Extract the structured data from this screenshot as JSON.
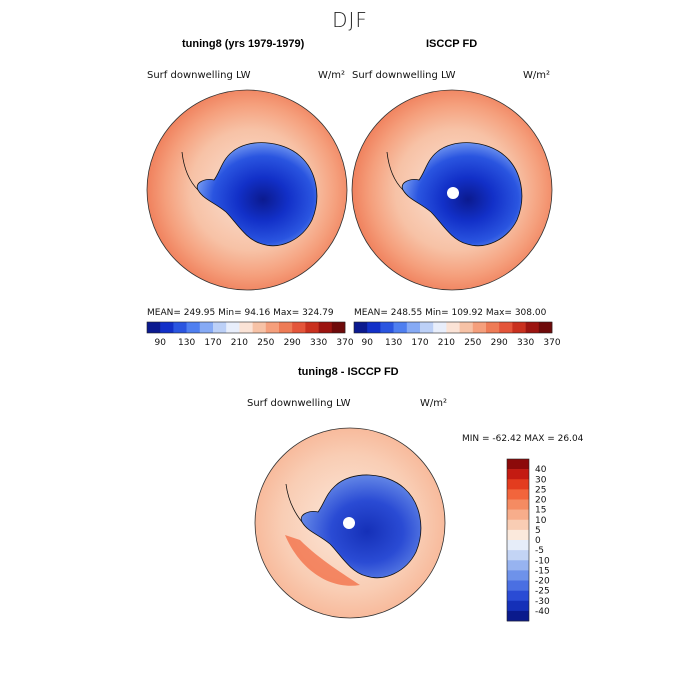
{
  "figure": {
    "season": "DJF"
  },
  "panels": [
    {
      "title": "tuning8 (yrs 1979-1979)",
      "variable": "Surf downwelling LW",
      "units": "W/m²",
      "stats": "MEAN= 249.95   Min=  94.16   Max= 324.79"
    },
    {
      "title": "ISCCP FD",
      "variable": "Surf downwelling LW",
      "units": "W/m²",
      "stats": "MEAN= 248.55   Min= 109.92   Max= 308.00"
    },
    {
      "title": "tuning8 - ISCCP FD",
      "variable": "Surf downwelling LW",
      "units": "W/m²",
      "stats": "MIN = -62.42  MAX =  26.04"
    }
  ],
  "colorbar_fields": {
    "labels": [
      "90",
      "130",
      "170",
      "210",
      "250",
      "290",
      "330",
      "370"
    ],
    "colors": [
      "#0b1a8f",
      "#1230c8",
      "#2a55e0",
      "#4f7ff0",
      "#86aaf5",
      "#bcd0f7",
      "#e8eefb",
      "#fbe3d6",
      "#f7c2a6",
      "#f59f7c",
      "#ee7b56",
      "#e4553a",
      "#c9301e",
      "#9c1410",
      "#6e0a0a"
    ]
  },
  "colorbar_diff": {
    "labels": [
      "40",
      "30",
      "25",
      "20",
      "15",
      "10",
      "5",
      "0",
      "-5",
      "-10",
      "-15",
      "-20",
      "-25",
      "-30",
      "-40"
    ],
    "colors": [
      "#8c0a0a",
      "#c41b12",
      "#e33c1f",
      "#f2653c",
      "#f58b62",
      "#f7ad8b",
      "#f9cdb4",
      "#fbe9dc",
      "#e6edf9",
      "#c3d4f5",
      "#97b3f0",
      "#6e92ea",
      "#4a6fe2",
      "#2a4bd4",
      "#1530b8",
      "#0a1a8c"
    ]
  },
  "map_colors": {
    "warm_outer": "#ee7753",
    "warm_mid": "#f59f7c",
    "warm_light": "#f7c2a6",
    "pale": "#fbe3d6",
    "cool_light": "#bcd0f7",
    "cool_mid": "#4f7ff0",
    "cool_deep": "#1230c8",
    "cool_darkest": "#0b1a8f"
  }
}
